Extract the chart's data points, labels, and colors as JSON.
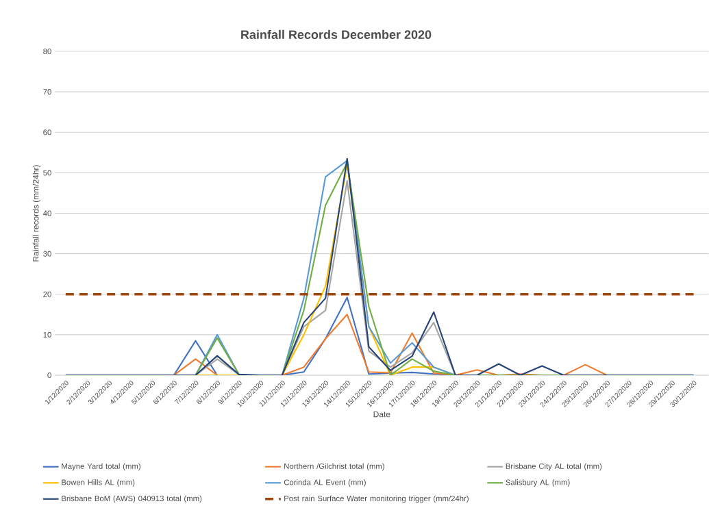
{
  "chart_data": {
    "type": "line",
    "title": "Rainfall Records December 2020",
    "xlabel": "Date",
    "ylabel": "Rainfall records (mm/24hr)",
    "categories": [
      "1/12/2020",
      "2/12/2020",
      "3/12/2020",
      "4/12/2020",
      "5/12/2020",
      "6/12/2020",
      "7/12/2020",
      "8/12/2020",
      "9/12/2020",
      "10/12/2020",
      "11/12/2020",
      "12/12/2020",
      "13/12/2020",
      "14/12/2020",
      "15/12/2020",
      "16/12/2020",
      "17/12/2020",
      "18/12/2020",
      "19/12/2020",
      "20/12/2020",
      "21/12/2020",
      "22/12/2020",
      "23/12/2020",
      "24/12/2020",
      "25/12/2020",
      "26/12/2020",
      "27/12/2020",
      "28/12/2020",
      "29/12/2020",
      "30/12/2020"
    ],
    "ylim": [
      0,
      80
    ],
    "yticks": [
      0,
      10,
      20,
      30,
      40,
      50,
      60,
      70,
      80
    ],
    "grid": "y",
    "legend": "bottom",
    "marker": "none",
    "series": [
      {
        "name": "Mayne Yard total (mm)",
        "color": "#4472c4",
        "values": [
          null,
          null,
          null,
          null,
          null,
          0,
          8.5,
          0,
          null,
          null,
          0,
          0.8,
          9,
          19.2,
          0.3,
          0.5,
          0.7,
          0.3,
          0,
          0,
          null,
          null,
          null,
          null,
          null,
          null,
          null,
          null,
          null,
          null
        ]
      },
      {
        "name": "Northern /Gilchrist total (mm)",
        "color": "#ed7d31",
        "values": [
          null,
          null,
          null,
          null,
          0,
          0,
          4,
          0,
          0,
          0,
          0,
          2,
          9,
          15,
          0.8,
          0.6,
          10.4,
          0.5,
          0,
          1.3,
          0,
          0.3,
          0,
          0,
          2.6,
          0,
          0,
          null,
          null,
          null
        ]
      },
      {
        "name": "Brisbane City AL total (mm)",
        "color": "#a5a5a5",
        "values": [
          null,
          null,
          null,
          null,
          null,
          null,
          0,
          4,
          0.2,
          null,
          0,
          12,
          16,
          48,
          6,
          2,
          5.5,
          13,
          0,
          null,
          null,
          null,
          null,
          null,
          null,
          null,
          null,
          null,
          null,
          null
        ]
      },
      {
        "name": "Bowen Hills AL (mm)",
        "color": "#ffc000",
        "values": [
          null,
          null,
          null,
          null,
          null,
          null,
          0,
          0,
          0,
          0,
          0,
          10,
          22,
          52,
          12,
          0,
          2,
          2,
          0,
          null,
          null,
          null,
          null,
          null,
          null,
          null,
          null,
          null,
          null,
          null
        ]
      },
      {
        "name": "Corinda AL Event (mm)",
        "color": "#5b9bd5",
        "values": [
          null,
          null,
          null,
          null,
          null,
          null,
          0,
          10,
          0.2,
          null,
          0,
          19,
          49,
          53,
          12,
          3,
          8,
          2,
          0,
          null,
          null,
          null,
          null,
          null,
          null,
          null,
          null,
          null,
          null,
          null
        ]
      },
      {
        "name": "Salisbury AL (mm)",
        "color": "#70ad47",
        "values": [
          null,
          null,
          null,
          null,
          null,
          null,
          0,
          9.2,
          0.2,
          null,
          0,
          16,
          42,
          52.5,
          17,
          0,
          4,
          1,
          0,
          0,
          0,
          0,
          0,
          0,
          0,
          null,
          null,
          null,
          null,
          null
        ]
      },
      {
        "name": "Brisbane BoM (AWS) 040913 total (mm)",
        "color": "#264478",
        "values": [
          0,
          0,
          0,
          0,
          0,
          0,
          0,
          4.8,
          0.2,
          0,
          0,
          13,
          19,
          53.5,
          7,
          1.2,
          4.7,
          15.6,
          0,
          0,
          2.8,
          0,
          2.3,
          0,
          0,
          0,
          0,
          0,
          0,
          0
        ]
      },
      {
        "name": "Post rain Surface Water monitoring trigger (mm/24hr)",
        "color": "#9e480e",
        "line_style": "dashed",
        "values": [
          20,
          20,
          20,
          20,
          20,
          20,
          20,
          20,
          20,
          20,
          20,
          20,
          20,
          20,
          20,
          20,
          20,
          20,
          20,
          20,
          20,
          20,
          20,
          20,
          20,
          20,
          20,
          20,
          20,
          20
        ]
      }
    ]
  }
}
